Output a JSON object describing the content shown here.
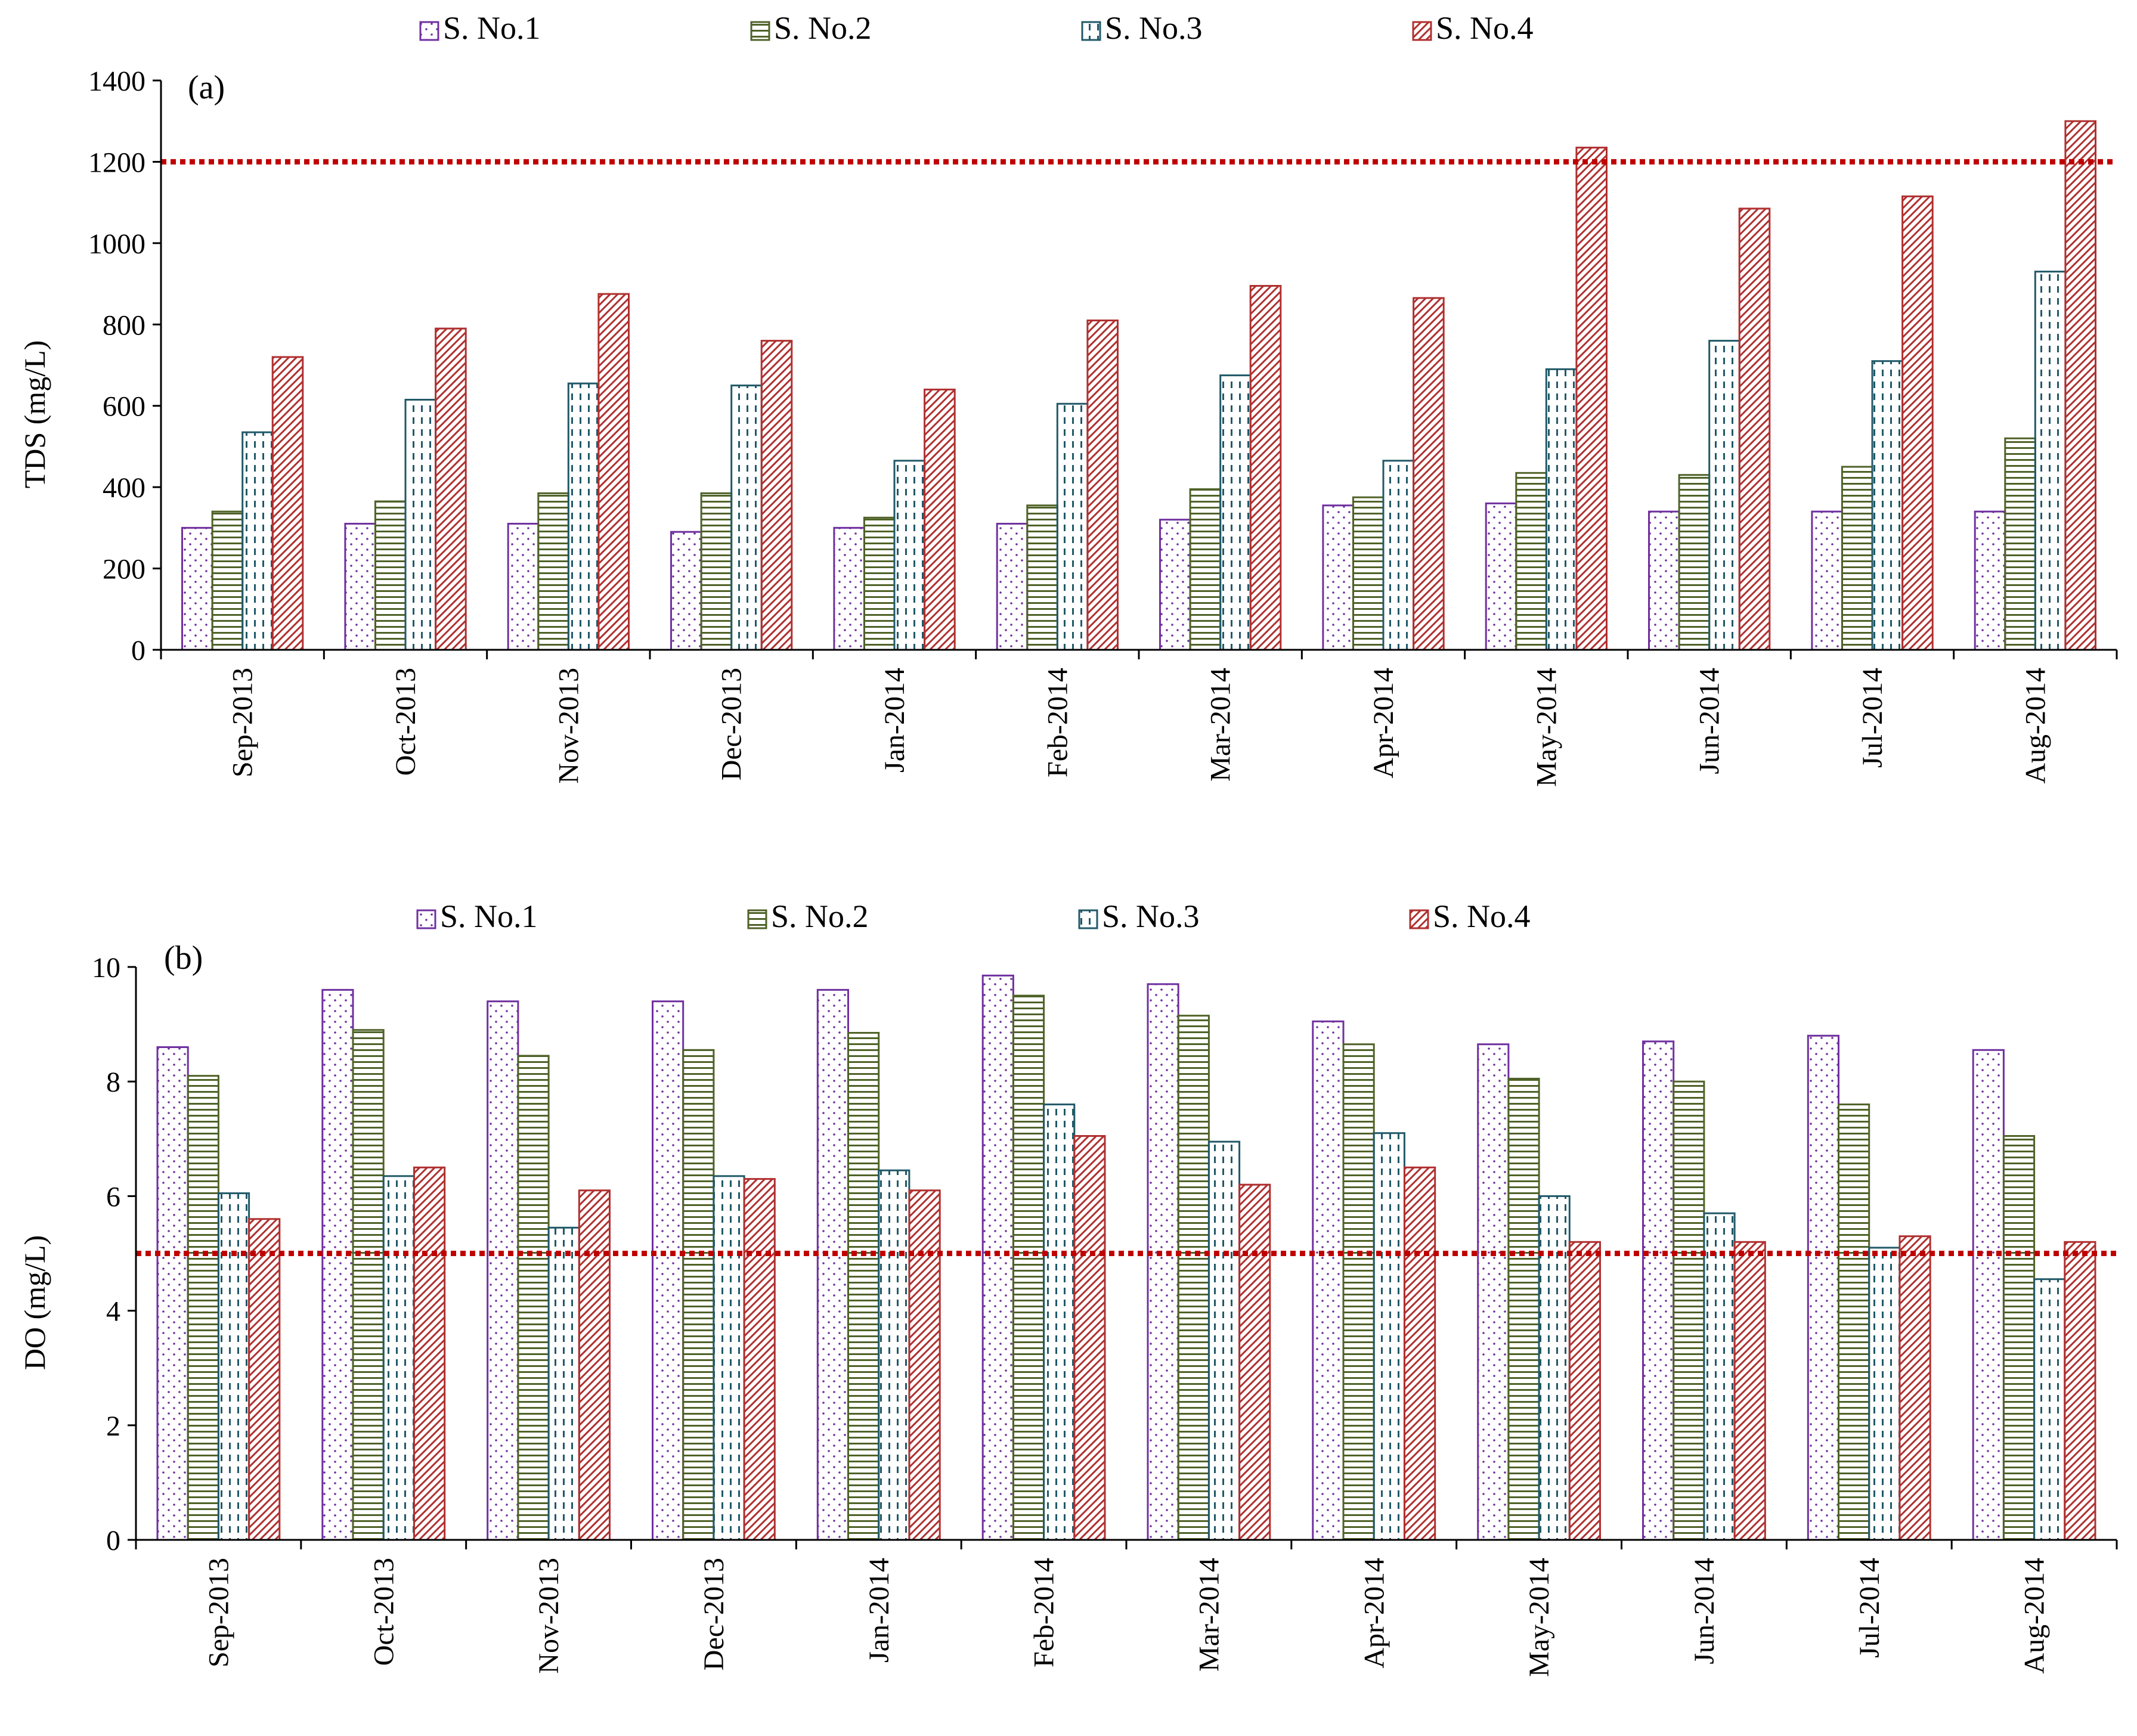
{
  "chart_data": [
    {
      "type": "bar",
      "panel_label": "(a)",
      "title": "",
      "xlabel": "",
      "ylabel": "TDS  (mg/L)",
      "ylim": [
        0,
        1400
      ],
      "yticks": [
        "0",
        "200",
        "400",
        "600",
        "800",
        "1000",
        "1200",
        "1400"
      ],
      "reference_line": 1200,
      "categories": [
        "Sep-2013",
        "Oct-2013",
        "Nov-2013",
        "Dec-2013",
        "Jan-2014",
        "Feb-2014",
        "Mar-2014",
        "Apr-2014",
        "May-2014",
        "Jun-2014",
        "Jul-2014",
        "Aug-2014"
      ],
      "series": [
        {
          "name": "S. No.1",
          "values": [
            300,
            310,
            310,
            290,
            300,
            310,
            320,
            355,
            360,
            340,
            340,
            340
          ]
        },
        {
          "name": "S. No.2",
          "values": [
            340,
            365,
            385,
            385,
            325,
            355,
            395,
            375,
            435,
            430,
            450,
            520
          ]
        },
        {
          "name": "S. No.3",
          "values": [
            535,
            615,
            655,
            650,
            465,
            605,
            675,
            465,
            690,
            760,
            710,
            930
          ]
        },
        {
          "name": "S. No.4",
          "values": [
            720,
            790,
            875,
            760,
            640,
            810,
            895,
            865,
            1235,
            1085,
            1115,
            1300
          ]
        }
      ],
      "legend_position": "top-center",
      "grid": false
    },
    {
      "type": "bar",
      "panel_label": "(b)",
      "title": "",
      "xlabel": "",
      "ylabel": "DO  (mg/L)",
      "ylim": [
        0,
        10
      ],
      "yticks": [
        "0",
        "2",
        "4",
        "6",
        "8",
        "10"
      ],
      "reference_line": 5,
      "categories": [
        "Sep-2013",
        "Oct-2013",
        "Nov-2013",
        "Dec-2013",
        "Jan-2014",
        "Feb-2014",
        "Mar-2014",
        "Apr-2014",
        "May-2014",
        "Jun-2014",
        "Jul-2014",
        "Aug-2014"
      ],
      "series": [
        {
          "name": "S. No.1",
          "values": [
            8.6,
            9.6,
            9.4,
            9.4,
            9.6,
            9.85,
            9.7,
            9.05,
            8.65,
            8.7,
            8.8,
            8.55
          ]
        },
        {
          "name": "S. No.2",
          "values": [
            8.1,
            8.9,
            8.45,
            8.55,
            8.85,
            9.5,
            9.15,
            8.65,
            8.05,
            8.0,
            7.6,
            7.05
          ]
        },
        {
          "name": "S. No.3",
          "values": [
            6.05,
            6.35,
            5.45,
            6.35,
            6.45,
            7.6,
            6.95,
            7.1,
            6.0,
            5.7,
            5.1,
            4.55
          ]
        },
        {
          "name": "S. No.4",
          "values": [
            5.6,
            6.5,
            6.1,
            6.3,
            6.1,
            7.05,
            6.2,
            6.5,
            5.2,
            5.2,
            5.3,
            5.2
          ]
        }
      ],
      "legend_position": "top-center",
      "grid": false
    }
  ],
  "colors": {
    "s1": "#7030a0",
    "s2": "#4f6228",
    "s3": "#215968",
    "s4": "#b03030",
    "reference_line": "#c00000",
    "axis": "#000000"
  }
}
